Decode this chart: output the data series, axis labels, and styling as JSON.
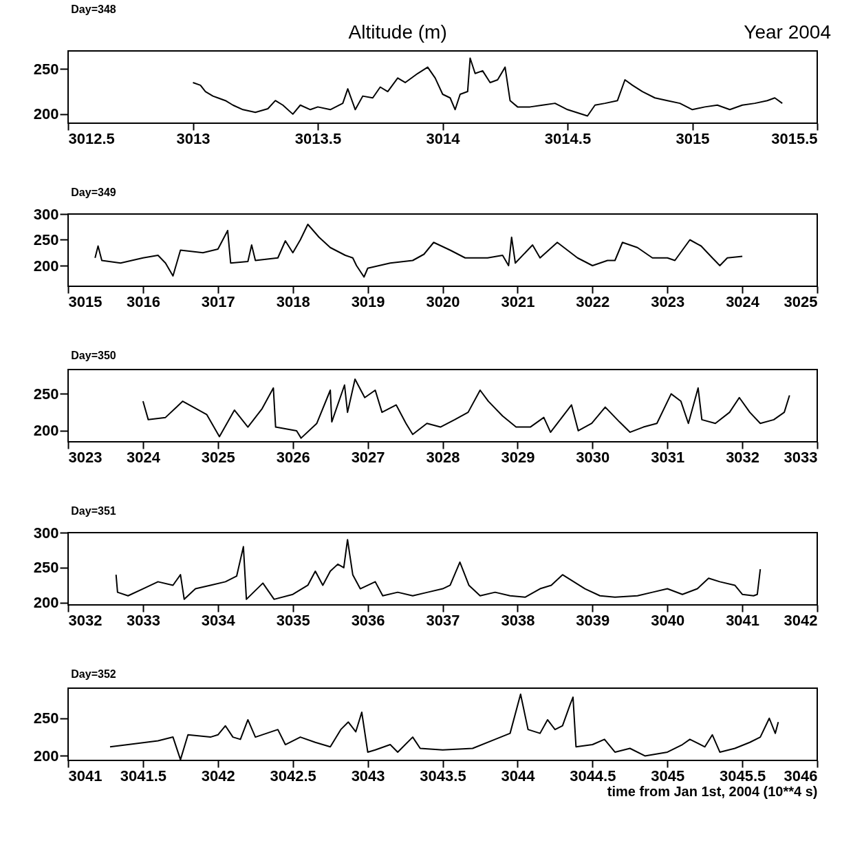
{
  "chart_data": [
    {
      "type": "line",
      "title": "Day=348",
      "annotations": [
        "Altitude (m)",
        "Year 2004"
      ],
      "color": "#000000",
      "line_style": "solid",
      "marker": "none",
      "grid": false,
      "xlim": [
        3012.5,
        3015.5
      ],
      "xticks": [
        3012.5,
        3013,
        3013.5,
        3014,
        3014.5,
        3015,
        3015.5
      ],
      "ylim": [
        190,
        270
      ],
      "yticks": [
        200,
        250
      ],
      "x": [
        3013.0,
        3013.03,
        3013.05,
        3013.08,
        3013.1,
        3013.13,
        3013.16,
        3013.2,
        3013.25,
        3013.3,
        3013.33,
        3013.36,
        3013.4,
        3013.43,
        3013.47,
        3013.5,
        3013.55,
        3013.6,
        3013.62,
        3013.65,
        3013.68,
        3013.72,
        3013.75,
        3013.78,
        3013.82,
        3013.85,
        3013.9,
        3013.94,
        3013.97,
        3014.0,
        3014.03,
        3014.05,
        3014.07,
        3014.1,
        3014.11,
        3014.13,
        3014.16,
        3014.19,
        3014.22,
        3014.25,
        3014.27,
        3014.3,
        3014.35,
        3014.4,
        3014.45,
        3014.5,
        3014.58,
        3014.61,
        3014.65,
        3014.7,
        3014.73,
        3014.76,
        3014.8,
        3014.85,
        3014.9,
        3014.95,
        3015.0,
        3015.05,
        3015.1,
        3015.15,
        3015.2,
        3015.25,
        3015.3,
        3015.33,
        3015.36
      ],
      "values": [
        235,
        232,
        225,
        220,
        218,
        215,
        210,
        205,
        202,
        206,
        215,
        210,
        200,
        210,
        205,
        208,
        205,
        212,
        228,
        205,
        220,
        218,
        230,
        225,
        240,
        235,
        245,
        252,
        240,
        222,
        218,
        205,
        222,
        225,
        262,
        245,
        248,
        235,
        238,
        252,
        215,
        208,
        208,
        210,
        212,
        205,
        198,
        210,
        212,
        215,
        238,
        232,
        225,
        218,
        215,
        212,
        205,
        208,
        210,
        205,
        210,
        212,
        215,
        218,
        212
      ]
    },
    {
      "type": "line",
      "title": "Day=349",
      "color": "#000000",
      "line_style": "solid",
      "marker": "none",
      "grid": false,
      "xlim": [
        3015,
        3025
      ],
      "xticks": [
        3015,
        3016,
        3017,
        3018,
        3019,
        3020,
        3021,
        3022,
        3023,
        3024,
        3025
      ],
      "ylim": [
        160,
        300
      ],
      "yticks": [
        200,
        250,
        300
      ],
      "x": [
        3015.36,
        3015.4,
        3015.45,
        3015.7,
        3016.0,
        3016.2,
        3016.3,
        3016.4,
        3016.5,
        3016.8,
        3017.0,
        3017.13,
        3017.17,
        3017.4,
        3017.45,
        3017.5,
        3017.8,
        3017.9,
        3018.0,
        3018.1,
        3018.2,
        3018.35,
        3018.5,
        3018.7,
        3018.8,
        3018.85,
        3018.95,
        3019.0,
        3019.3,
        3019.6,
        3019.75,
        3019.88,
        3020.1,
        3020.3,
        3020.6,
        3020.8,
        3020.88,
        3020.92,
        3020.97,
        3021.2,
        3021.3,
        3021.53,
        3021.8,
        3022.0,
        3022.2,
        3022.3,
        3022.4,
        3022.6,
        3022.8,
        3023.0,
        3023.1,
        3023.3,
        3023.45,
        3023.6,
        3023.7,
        3023.8,
        3024.0
      ],
      "values": [
        215,
        238,
        210,
        205,
        215,
        220,
        205,
        180,
        230,
        225,
        232,
        268,
        205,
        208,
        240,
        210,
        215,
        248,
        225,
        250,
        280,
        255,
        235,
        220,
        215,
        200,
        178,
        195,
        205,
        210,
        222,
        245,
        230,
        215,
        215,
        220,
        200,
        255,
        205,
        240,
        215,
        245,
        215,
        200,
        210,
        210,
        245,
        235,
        215,
        215,
        210,
        250,
        238,
        215,
        200,
        215,
        218
      ]
    },
    {
      "type": "line",
      "title": "Day=350",
      "color": "#000000",
      "line_style": "solid",
      "marker": "none",
      "grid": false,
      "xlim": [
        3023,
        3033
      ],
      "xticks": [
        3023,
        3024,
        3025,
        3026,
        3027,
        3028,
        3029,
        3030,
        3031,
        3032,
        3033
      ],
      "ylim": [
        185,
        283
      ],
      "yticks": [
        200,
        250
      ],
      "x": [
        3024.0,
        3024.07,
        3024.3,
        3024.53,
        3024.85,
        3025.02,
        3025.22,
        3025.4,
        3025.59,
        3025.74,
        3025.77,
        3026.05,
        3026.11,
        3026.32,
        3026.5,
        3026.52,
        3026.69,
        3026.73,
        3026.83,
        3026.96,
        3027.1,
        3027.19,
        3027.38,
        3027.51,
        3027.6,
        3027.79,
        3027.97,
        3028.16,
        3028.34,
        3028.5,
        3028.61,
        3028.8,
        3028.98,
        3029.17,
        3029.35,
        3029.44,
        3029.72,
        3029.81,
        3029.99,
        3030.17,
        3030.36,
        3030.5,
        3030.68,
        3030.86,
        3031.05,
        3031.18,
        3031.28,
        3031.41,
        3031.46,
        3031.64,
        3031.83,
        3031.96,
        3032.1,
        3032.24,
        3032.42,
        3032.56,
        3032.63
      ],
      "values": [
        240,
        215,
        218,
        240,
        222,
        192,
        228,
        205,
        230,
        258,
        205,
        200,
        190,
        210,
        255,
        212,
        262,
        225,
        270,
        245,
        255,
        225,
        235,
        210,
        195,
        210,
        205,
        215,
        225,
        255,
        240,
        220,
        205,
        205,
        218,
        198,
        235,
        200,
        210,
        232,
        212,
        198,
        205,
        210,
        250,
        240,
        210,
        258,
        215,
        210,
        225,
        245,
        225,
        210,
        215,
        225,
        248
      ]
    },
    {
      "type": "line",
      "title": "Day=351",
      "color": "#000000",
      "line_style": "solid",
      "marker": "none",
      "grid": false,
      "xlim": [
        3032,
        3042
      ],
      "xticks": [
        3032,
        3033,
        3034,
        3035,
        3036,
        3037,
        3038,
        3039,
        3040,
        3041,
        3042
      ],
      "ylim": [
        197,
        300
      ],
      "yticks": [
        200,
        250,
        300
      ],
      "x": [
        3032.64,
        3032.66,
        3032.8,
        3033.0,
        3033.2,
        3033.4,
        3033.5,
        3033.55,
        3033.7,
        3033.9,
        3034.1,
        3034.25,
        3034.34,
        3034.38,
        3034.6,
        3034.75,
        3035.0,
        3035.2,
        3035.3,
        3035.4,
        3035.5,
        3035.6,
        3035.68,
        3035.73,
        3035.8,
        3035.9,
        3036.1,
        3036.2,
        3036.4,
        3036.6,
        3036.8,
        3037.0,
        3037.1,
        3037.23,
        3037.35,
        3037.5,
        3037.7,
        3037.9,
        3038.1,
        3038.3,
        3038.45,
        3038.6,
        3038.9,
        3039.1,
        3039.3,
        3039.6,
        3039.8,
        3040.0,
        3040.2,
        3040.4,
        3040.55,
        3040.7,
        3040.9,
        3041.0,
        3041.15,
        3041.2,
        3041.24
      ],
      "values": [
        240,
        215,
        210,
        220,
        230,
        225,
        240,
        205,
        220,
        225,
        230,
        238,
        280,
        205,
        228,
        205,
        212,
        225,
        245,
        225,
        245,
        255,
        250,
        290,
        240,
        220,
        230,
        210,
        215,
        210,
        215,
        220,
        225,
        258,
        225,
        210,
        215,
        210,
        208,
        220,
        225,
        240,
        220,
        210,
        208,
        210,
        215,
        220,
        212,
        220,
        235,
        230,
        225,
        212,
        210,
        212,
        248
      ]
    },
    {
      "type": "line",
      "title": "Day=352",
      "xlabel": "time from Jan 1st, 2004 (10**4 s)",
      "color": "#000000",
      "line_style": "solid",
      "marker": "none",
      "grid": false,
      "xlim": [
        3041,
        3046
      ],
      "xticks": [
        3041,
        3041.5,
        3042,
        3042.5,
        3043,
        3043.5,
        3044,
        3044.5,
        3045,
        3045.5,
        3046
      ],
      "ylim": [
        194,
        290
      ],
      "yticks": [
        200,
        250
      ],
      "x": [
        3041.28,
        3041.4,
        3041.6,
        3041.7,
        3041.75,
        3041.8,
        3041.95,
        3042.0,
        3042.05,
        3042.1,
        3042.15,
        3042.2,
        3042.25,
        3042.4,
        3042.45,
        3042.55,
        3042.65,
        3042.75,
        3042.82,
        3042.87,
        3042.92,
        3042.96,
        3043.0,
        3043.05,
        3043.15,
        3043.2,
        3043.3,
        3043.35,
        3043.5,
        3043.7,
        3043.85,
        3043.95,
        3044.02,
        3044.07,
        3044.15,
        3044.2,
        3044.25,
        3044.3,
        3044.35,
        3044.37,
        3044.39,
        3044.5,
        3044.58,
        3044.65,
        3044.75,
        3044.85,
        3045.0,
        3045.1,
        3045.15,
        3045.25,
        3045.3,
        3045.35,
        3045.45,
        3045.55,
        3045.62,
        3045.68,
        3045.72,
        3045.74
      ],
      "values": [
        212,
        215,
        220,
        225,
        195,
        228,
        225,
        228,
        240,
        225,
        222,
        248,
        225,
        235,
        215,
        225,
        218,
        212,
        235,
        245,
        232,
        258,
        205,
        208,
        215,
        205,
        225,
        210,
        208,
        210,
        222,
        230,
        282,
        235,
        230,
        248,
        235,
        240,
        268,
        278,
        212,
        215,
        222,
        205,
        210,
        200,
        205,
        215,
        222,
        212,
        228,
        205,
        210,
        218,
        225,
        250,
        230,
        245
      ]
    }
  ]
}
